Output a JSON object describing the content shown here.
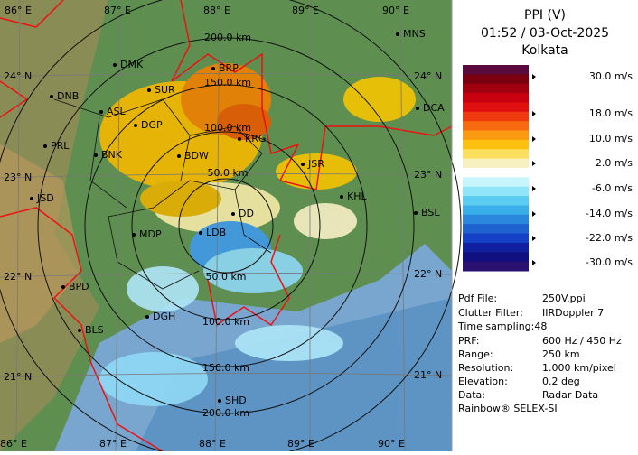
{
  "panel": {
    "title": "PPI (V)",
    "time": "01:52 / 03-Oct-2025",
    "station": "Kolkata",
    "scale": {
      "labels": [
        "30.0 m/s",
        "18.0 m/s",
        "10.0 m/s",
        "2.0 m/s",
        "-6.0 m/s",
        "-14.0 m/s",
        "-22.0 m/s",
        "-30.0 m/s"
      ]
    },
    "info": [
      {
        "label": "Pdf File:",
        "value": "250V.ppi"
      },
      {
        "label": "Clutter Filter:",
        "value": "IIRDoppler 7"
      },
      {
        "label": "Time sampling:48"
      },
      {
        "label": "PRF:",
        "value": "600 Hz / 450 Hz"
      },
      {
        "label": "Range:",
        "value": "250 km"
      },
      {
        "label": "Resolution:",
        "value": "1.000 km/pixel"
      },
      {
        "label": "Elevation:",
        "value": "0.2 deg"
      },
      {
        "label": "Data:",
        "value": "Radar Data"
      }
    ],
    "footer": "Rainbow® SELEX-SI"
  },
  "map": {
    "lon_labels_top": [
      "86° E",
      "87° E",
      "88° E",
      "89° E",
      "90° E"
    ],
    "lon_labels_bottom": [
      "86° E",
      "87° E",
      "88° E",
      "89° E",
      "90° E"
    ],
    "lat_labels_left": [
      "24° N",
      "23° N",
      "22° N",
      "21° N"
    ],
    "lat_labels_right": [
      "24° N",
      "23° N",
      "22° N",
      "21° N"
    ],
    "ring_labels_top": [
      "200.0 km",
      "150.0 km",
      "100.0 km",
      "50.0 km"
    ],
    "ring_labels_bottom": [
      "50.0 km",
      "100.0 km",
      "150.0 km",
      "200.0 km"
    ],
    "cities": [
      "MNS",
      "DMK",
      "BRP",
      "DNB",
      "SUR",
      "ASL",
      "DCA",
      "DGP",
      "PRL",
      "BNK",
      "KRG",
      "BDW",
      "JSR",
      "KHL",
      "JSD",
      "DD",
      "BSL",
      "MDP",
      "LDB",
      "BPD",
      "DGH",
      "BLS",
      "SHD"
    ]
  }
}
